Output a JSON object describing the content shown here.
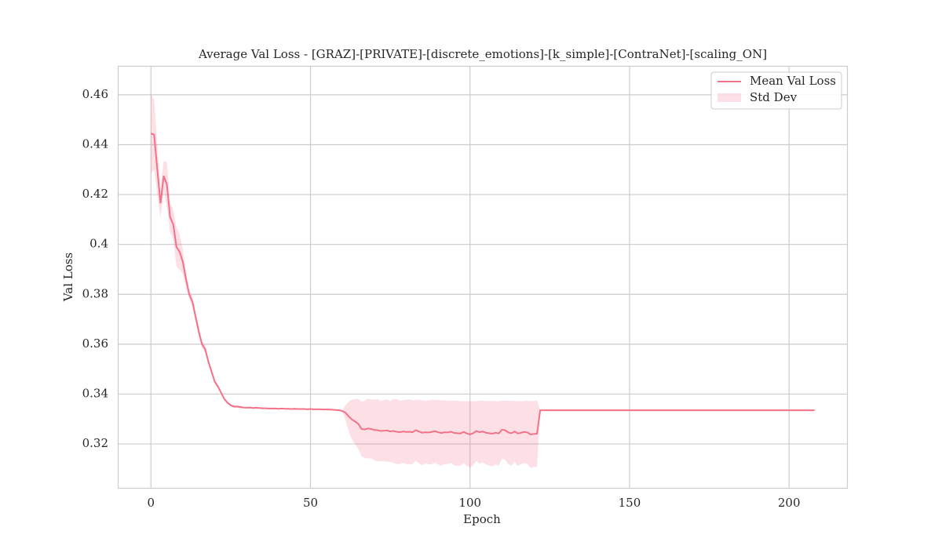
{
  "chart_data": {
    "type": "line",
    "title": "Average Val Loss - [GRAZ]-[PRIVATE]-[discrete_emotions]-[k_simple]-[ContraNet]-[scaling_ON]",
    "xlabel": "Epoch",
    "ylabel": "Val Loss",
    "x": [
      0,
      1,
      2,
      3,
      4,
      5,
      6,
      7,
      8,
      9,
      10,
      11,
      12,
      13,
      14,
      15,
      16,
      17,
      18,
      19,
      20,
      21,
      22,
      23,
      24,
      25,
      26,
      27,
      28,
      29,
      30,
      31,
      32,
      33,
      34,
      35,
      36,
      37,
      38,
      39,
      40,
      41,
      42,
      43,
      44,
      45,
      46,
      47,
      48,
      49,
      50,
      51,
      52,
      53,
      54,
      55,
      56,
      57,
      58,
      59,
      60,
      61,
      62,
      63,
      64,
      65,
      66,
      67,
      68,
      69,
      70,
      71,
      72,
      73,
      74,
      75,
      76,
      77,
      78,
      79,
      80,
      81,
      82,
      83,
      84,
      85,
      86,
      87,
      88,
      89,
      90,
      91,
      92,
      93,
      94,
      95,
      96,
      97,
      98,
      99,
      100,
      101,
      102,
      103,
      104,
      105,
      106,
      107,
      108,
      109,
      110,
      111,
      112,
      113,
      114,
      115,
      116,
      117,
      118,
      119,
      120,
      121,
      122,
      123,
      124,
      125,
      126,
      127,
      128,
      129,
      130,
      131,
      132,
      133,
      134,
      135,
      136,
      137,
      138,
      139,
      140,
      141,
      142,
      143,
      144,
      145,
      146,
      147,
      148,
      149,
      150,
      151,
      152,
      153,
      154,
      155,
      156,
      157,
      158,
      159,
      160,
      161,
      162,
      163,
      164,
      165,
      166,
      167,
      168,
      169,
      170,
      171,
      172,
      173,
      174,
      175,
      176,
      177,
      178,
      179,
      180,
      181,
      182,
      183,
      184,
      185,
      186,
      187,
      188,
      189,
      190,
      191,
      192,
      193,
      194,
      195,
      196,
      197,
      198,
      199,
      200,
      201,
      202,
      203,
      204,
      205,
      206,
      207,
      208
    ],
    "series": [
      {
        "name": "Mean Val Loss",
        "color": "#f27289",
        "values": [
          0.4445,
          0.444,
          0.43,
          0.4165,
          0.4275,
          0.424,
          0.411,
          0.408,
          0.399,
          0.397,
          0.393,
          0.386,
          0.38,
          0.377,
          0.371,
          0.365,
          0.36,
          0.358,
          0.353,
          0.349,
          0.345,
          0.343,
          0.3405,
          0.338,
          0.3365,
          0.3355,
          0.335,
          0.335,
          0.3348,
          0.3346,
          0.3345,
          0.3346,
          0.3344,
          0.3345,
          0.3344,
          0.3343,
          0.3343,
          0.3342,
          0.3342,
          0.3342,
          0.3341,
          0.3342,
          0.3341,
          0.3341,
          0.334,
          0.3341,
          0.334,
          0.334,
          0.334,
          0.3339,
          0.334,
          0.3339,
          0.3339,
          0.3339,
          0.3338,
          0.3338,
          0.3338,
          0.3337,
          0.3336,
          0.3335,
          0.3332,
          0.3325,
          0.331,
          0.3298,
          0.329,
          0.328,
          0.326,
          0.3258,
          0.3262,
          0.326,
          0.3256,
          0.3255,
          0.3252,
          0.3253,
          0.3254,
          0.325,
          0.3252,
          0.3249,
          0.3247,
          0.325,
          0.3248,
          0.3249,
          0.3247,
          0.3255,
          0.325,
          0.3245,
          0.3247,
          0.3246,
          0.3248,
          0.3251,
          0.3247,
          0.3244,
          0.3247,
          0.3246,
          0.3249,
          0.3244,
          0.3243,
          0.3242,
          0.3248,
          0.3242,
          0.3238,
          0.3243,
          0.3252,
          0.3247,
          0.325,
          0.3245,
          0.3243,
          0.3241,
          0.3245,
          0.3242,
          0.3257,
          0.3255,
          0.3246,
          0.3243,
          0.325,
          0.3242,
          0.3245,
          0.3248,
          0.3246,
          0.3238,
          0.324,
          0.3241,
          0.3335,
          0.3335,
          0.3335,
          0.3335,
          0.3335,
          0.3335,
          0.3335,
          0.3335,
          0.3335,
          0.3335,
          0.3335,
          0.3335,
          0.3335,
          0.3335,
          0.3335,
          0.3335,
          0.3335,
          0.3335,
          0.3335,
          0.3335,
          0.3335,
          0.3335,
          0.3335,
          0.3335,
          0.3335,
          0.3335,
          0.3335,
          0.3335,
          0.3335,
          0.3335,
          0.3335,
          0.3335,
          0.3335,
          0.3335,
          0.3335,
          0.3335,
          0.3335,
          0.3335,
          0.3335,
          0.3335,
          0.3335,
          0.3335,
          0.3335,
          0.3335,
          0.3335,
          0.3335,
          0.3335,
          0.3335,
          0.3335,
          0.3335,
          0.3335,
          0.3335,
          0.3335,
          0.3335,
          0.3335,
          0.3335,
          0.3335,
          0.3335,
          0.3335,
          0.3335,
          0.3335,
          0.3335,
          0.3335,
          0.3335,
          0.3335,
          0.3335,
          0.3335,
          0.3335,
          0.3335,
          0.3335,
          0.3335,
          0.3335,
          0.3335,
          0.3335,
          0.3335,
          0.3335,
          0.3335,
          0.3335,
          0.3335,
          0.3335,
          0.3335,
          0.3335,
          0.3335,
          0.3335,
          0.3335,
          0.3335,
          0.3335
        ]
      }
    ],
    "band": {
      "name": "Std Dev",
      "color": "#f27289",
      "opacity": 0.22,
      "values": [
        0.016,
        0.014,
        0.01,
        0.006,
        0.006,
        0.009,
        0.006,
        0.006,
        0.008,
        0.007,
        0.005,
        0.003,
        0.002,
        0.002,
        0.002,
        0.002,
        0.0015,
        0.0015,
        0.001,
        0.001,
        0.001,
        0.0005,
        0.0005,
        0.0005,
        0.0005,
        0.0005,
        0.0005,
        0.0005,
        0.0005,
        0.0003,
        0.0003,
        0.0003,
        0.0003,
        0.0003,
        0.0003,
        0.0003,
        0.0003,
        0.0003,
        0.0003,
        0.0003,
        0.0003,
        0.0003,
        0.0003,
        0.0003,
        0.0003,
        0.0003,
        0.0003,
        0.0003,
        0.0003,
        0.0003,
        0.0003,
        0.0003,
        0.0003,
        0.0003,
        0.0003,
        0.0003,
        0.0003,
        0.0003,
        0.0003,
        0.0003,
        0.0003,
        0.003,
        0.006,
        0.008,
        0.009,
        0.01,
        0.011,
        0.0115,
        0.012,
        0.0118,
        0.0122,
        0.0125,
        0.012,
        0.0123,
        0.0125,
        0.0122,
        0.0128,
        0.013,
        0.0127,
        0.0125,
        0.0129,
        0.013,
        0.0128,
        0.0122,
        0.0127,
        0.013,
        0.0126,
        0.0128,
        0.013,
        0.0125,
        0.0129,
        0.0132,
        0.0128,
        0.0127,
        0.0125,
        0.013,
        0.0131,
        0.0129,
        0.0124,
        0.013,
        0.0133,
        0.0128,
        0.012,
        0.0126,
        0.0124,
        0.0127,
        0.013,
        0.0131,
        0.0127,
        0.0129,
        0.0116,
        0.0118,
        0.0127,
        0.013,
        0.0122,
        0.013,
        0.0126,
        0.0124,
        0.0127,
        0.0134,
        0.0132,
        0.0134,
        0,
        0,
        0,
        0,
        0,
        0,
        0,
        0,
        0,
        0,
        0,
        0,
        0,
        0,
        0,
        0,
        0,
        0,
        0,
        0,
        0,
        0,
        0,
        0,
        0,
        0,
        0,
        0,
        0,
        0,
        0,
        0,
        0,
        0,
        0,
        0,
        0,
        0,
        0,
        0,
        0,
        0,
        0,
        0,
        0,
        0,
        0,
        0,
        0,
        0,
        0,
        0,
        0,
        0,
        0,
        0,
        0,
        0,
        0,
        0,
        0,
        0,
        0,
        0,
        0,
        0,
        0,
        0,
        0,
        0,
        0,
        0,
        0,
        0,
        0,
        0,
        0,
        0,
        0,
        0,
        0,
        0,
        0,
        0,
        0,
        0,
        0
      ]
    },
    "xlim": [
      -10.4,
      218.4
    ],
    "ylim": [
      0.3024,
      0.4716
    ],
    "xticks": [
      0,
      50,
      100,
      150,
      200
    ],
    "yticks": [
      0.32,
      0.34,
      0.36,
      0.38,
      0.4,
      0.42,
      0.44,
      0.46
    ],
    "grid": true,
    "legend": "upper right"
  }
}
